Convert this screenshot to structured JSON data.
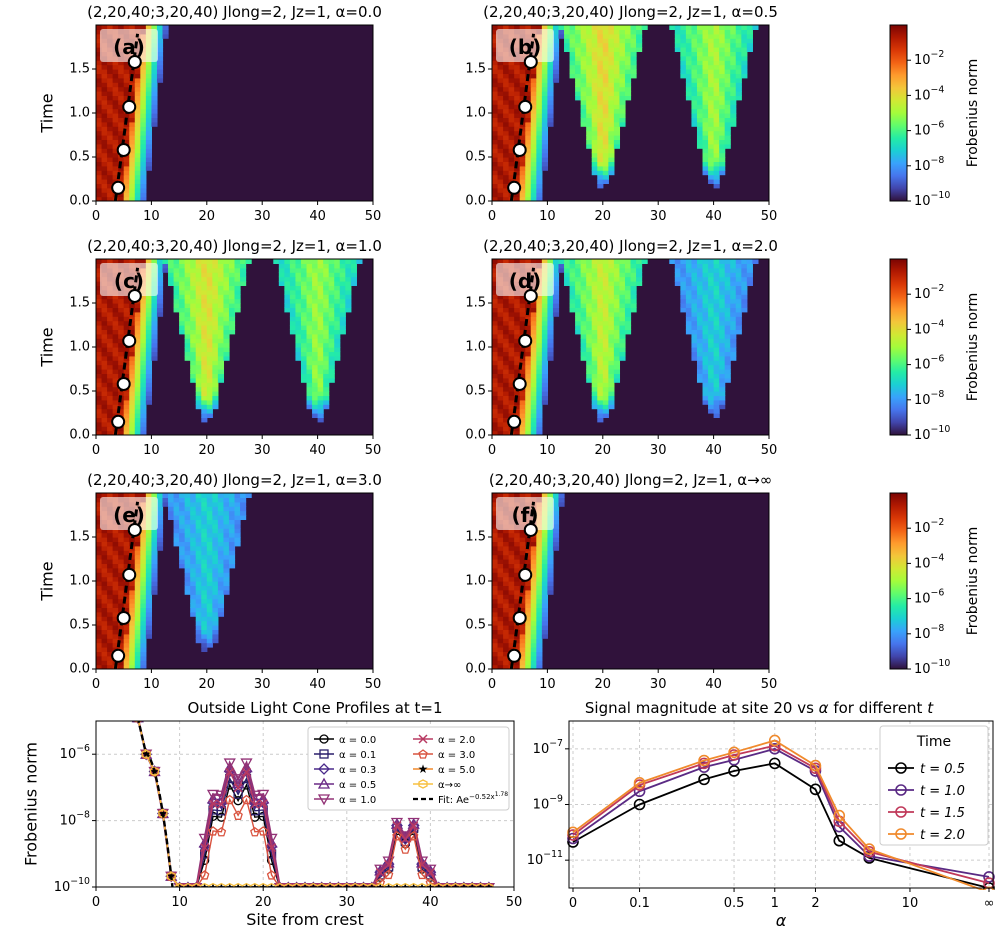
{
  "colorbar": {
    "label": "Frobenius norm",
    "scale": "log",
    "range": [
      1e-10,
      1
    ],
    "ticks": [
      "10^-2",
      "10^-4",
      "10^-6",
      "10^-8",
      "10^-10"
    ],
    "colormap": "turbo",
    "colors": [
      "#30123b",
      "#4145ab",
      "#4675ed",
      "#39a2fc",
      "#1bcfd4",
      "#24eca6",
      "#61fc6c",
      "#a4fc3b",
      "#d1e834",
      "#f3c63a",
      "#fe9b2d",
      "#f36315",
      "#d93806",
      "#b11901",
      "#7a0403"
    ]
  },
  "heatmaps": [
    {
      "label": "(a)",
      "title": "(2,20,40;3,20,40) Jlong=2, Jz=1, α=0.0",
      "alpha": "0.0",
      "ghost_sites": [],
      "ghost_strength": []
    },
    {
      "label": "(b)",
      "title": "(2,20,40;3,20,40) Jlong=2, Jz=1, α=0.5",
      "alpha": "0.5",
      "ghost_sites": [
        20,
        40
      ],
      "ghost_strength": [
        0.62,
        0.52
      ]
    },
    {
      "label": "(c)",
      "title": "(2,20,40;3,20,40) Jlong=2, Jz=1, α=1.0",
      "alpha": "1.0",
      "ghost_sites": [
        20,
        40
      ],
      "ghost_strength": [
        0.6,
        0.5
      ]
    },
    {
      "label": "(d)",
      "title": "(2,20,40;3,20,40) Jlong=2, Jz=1, α=2.0",
      "alpha": "2.0",
      "ghost_sites": [
        20,
        40
      ],
      "ghost_strength": [
        0.56,
        0.3
      ]
    },
    {
      "label": "(e)",
      "title": "(2,20,40;3,20,40) Jlong=2, Jz=1, α=3.0",
      "alpha": "3.0",
      "ghost_sites": [
        20
      ],
      "ghost_strength": [
        0.3
      ]
    },
    {
      "label": "(f)",
      "title": "(2,20,40;3,20,40) Jlong=2, Jz=1, α→∞",
      "alpha": "∞",
      "ghost_sites": [],
      "ghost_strength": []
    }
  ],
  "heatmap_axes": {
    "ylabel": "Time",
    "xlim": [
      0,
      50
    ],
    "ylim": [
      0,
      2
    ],
    "xticks": [
      "0",
      "10",
      "20",
      "30",
      "40",
      "50"
    ],
    "yticks": [
      "0.0",
      "0.5",
      "1.0",
      "1.5"
    ],
    "crest_points": [
      {
        "x": 4,
        "t": 0.15
      },
      {
        "x": 5,
        "t": 0.58
      },
      {
        "x": 6,
        "t": 1.07
      },
      {
        "x": 7,
        "t": 1.58
      }
    ],
    "crest_line": [
      {
        "x": 3.5,
        "t": 0
      },
      {
        "x": 7.5,
        "t": 1.9
      }
    ]
  },
  "chart_data": [
    {
      "type": "line",
      "title": "Outside Light Cone Profiles at t=1",
      "xlabel": "Site from crest",
      "ylabel": "Frobenius norm",
      "xlim": [
        0,
        50
      ],
      "ylim": [
        1e-10,
        1e-05
      ],
      "yscale": "log",
      "xticks": [
        "0",
        "10",
        "20",
        "30",
        "40",
        "50"
      ],
      "yticks": [
        "10^-6",
        "10^-8",
        "10^-10"
      ],
      "grid": true,
      "legend_position": "top-right",
      "series": [
        {
          "name": "α = 0.0",
          "color": "#000000",
          "marker": "o",
          "ghost": 0.0
        },
        {
          "name": "α = 0.1",
          "color": "#2a1f6b",
          "marker": "s",
          "ghost": 0.35
        },
        {
          "name": "α = 0.3",
          "color": "#4a2a8a",
          "marker": "D",
          "ghost": 0.75
        },
        {
          "name": "α = 0.5",
          "color": "#6a2a86",
          "marker": "^",
          "ghost": 0.95
        },
        {
          "name": "α = 1.0",
          "color": "#923276",
          "marker": "v",
          "ghost": 1.2
        },
        {
          "name": "α = 2.0",
          "color": "#b83a62",
          "marker": "x",
          "ghost": 0.7
        },
        {
          "name": "α = 3.0",
          "color": "#d9533f",
          "marker": "p",
          "ghost": -0.8
        },
        {
          "name": "α = 5.0",
          "color": "#f08a2c",
          "marker": "*",
          "ghost": -99
        },
        {
          "name": "α→∞",
          "color": "#f7c040",
          "marker": "h",
          "ghost": -99
        }
      ],
      "fit": {
        "name": "Fit: Ae^{-0.52x^{1.78}}",
        "label_main": "Fit: Ae",
        "label_exp": "−0.52x",
        "label_exp2": "1.78",
        "color": "#000000",
        "style": "dashed"
      }
    },
    {
      "type": "line",
      "title": "Signal magnitude at site 20 vs α for different t",
      "title_main": "Signal magnitude at site 20 vs ",
      "title_alpha": "α",
      "title_mid": " for different ",
      "title_t": "t",
      "xlabel": "α",
      "ylabel": "",
      "xscale": "symlog",
      "yscale": "log",
      "ylim": [
        1e-12,
        1e-06
      ],
      "xticks": [
        "0",
        "0.1",
        "0.5",
        "1",
        "2",
        "10",
        "∞"
      ],
      "yticks": [
        "10^-7",
        "10^-9",
        "10^-11"
      ],
      "grid": true,
      "legend_title": "Time",
      "legend_position": "top-right",
      "x": [
        "0",
        "0.1",
        "0.3",
        "0.5",
        "1",
        "2",
        "3",
        "5",
        "∞"
      ],
      "series": [
        {
          "name": "t = 0.5",
          "color": "#000000",
          "values": [
            4.5e-11,
            1e-09,
            8e-09,
            1.6e-08,
            3e-08,
            3.5e-09,
            5e-11,
            1.2e-11,
            1e-12
          ]
        },
        {
          "name": "t = 1.0",
          "color": "#5a2a84",
          "values": [
            6e-11,
            3e-09,
            2.2e-08,
            4e-08,
            1e-07,
            1.6e-08,
            1.6e-10,
            1.4e-11,
            2.5e-12
          ]
        },
        {
          "name": "t = 1.5",
          "color": "#c0395a",
          "values": [
            8e-11,
            5e-09,
            3e-08,
            6e-08,
            1.3e-07,
            2e-08,
            2.5e-10,
            2e-11,
            1.5e-12
          ]
        },
        {
          "name": "t = 2.0",
          "color": "#f08a2c",
          "values": [
            1e-10,
            6e-09,
            3.8e-08,
            7.5e-08,
            2e-07,
            2.5e-08,
            4e-10,
            2.5e-11,
            7e-13
          ]
        }
      ]
    }
  ]
}
